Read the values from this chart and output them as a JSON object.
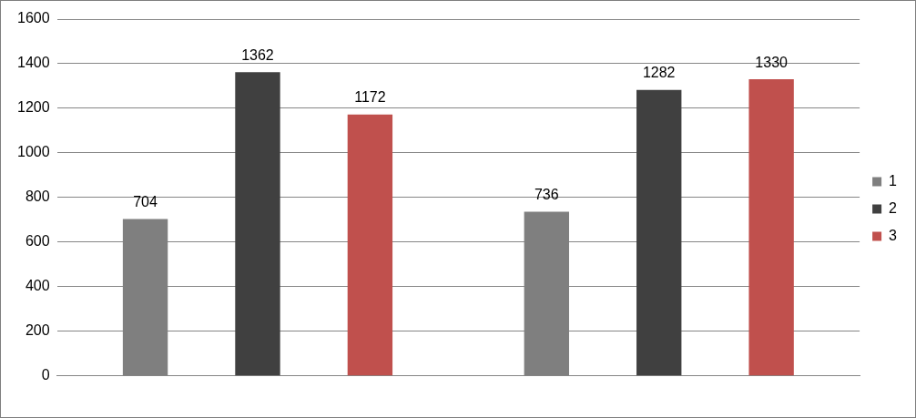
{
  "chart_data": {
    "type": "bar",
    "categories": [
      null,
      null
    ],
    "series": [
      {
        "name": "1",
        "color": "#7f7f7f",
        "values": [
          704,
          736
        ]
      },
      {
        "name": "2",
        "color": "#404040",
        "values": [
          1362,
          1282
        ]
      },
      {
        "name": "3",
        "color": "#c0504d",
        "values": [
          1172,
          1330
        ]
      }
    ],
    "ylim": [
      0,
      1600
    ],
    "yticks": [
      0,
      200,
      400,
      600,
      800,
      1000,
      1200,
      1400,
      1600
    ],
    "grid": "y",
    "legend": "right",
    "data_labels": true
  }
}
